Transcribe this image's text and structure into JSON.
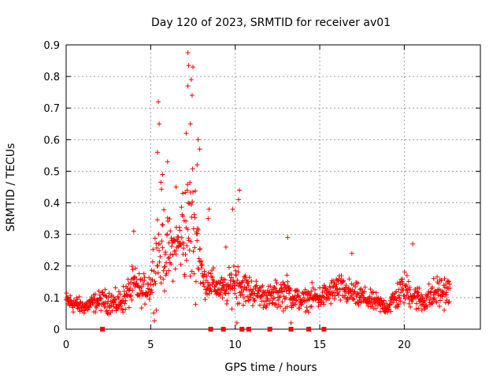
{
  "chart_data": {
    "type": "scatter",
    "title": "Day 120 of 2023, SRMTID for receiver av01",
    "xlabel": "GPS time / hours",
    "ylabel": "SRMTID / TECUs",
    "xlim": [
      0,
      24.5
    ],
    "ylim": [
      0,
      0.9
    ],
    "xticks": [
      0,
      5,
      10,
      15,
      20
    ],
    "yticks": [
      0,
      0.1,
      0.2,
      0.3,
      0.4,
      0.5,
      0.6,
      0.7,
      0.8,
      0.9
    ],
    "ytick_labels": [
      "0",
      "0.1",
      "0.2",
      "0.3",
      "0.4",
      "0.5",
      "0.6",
      "0.7",
      "0.8",
      "0.9"
    ],
    "grid": true,
    "marker": "plus",
    "color": "#ff0000",
    "series": [
      {
        "name": "SRMTID",
        "envelope_x": [
          0,
          0.5,
          1,
          1.5,
          2,
          2.5,
          3,
          3.5,
          4,
          4.5,
          5,
          5.3,
          5.6,
          6,
          6.3,
          6.6,
          6.9,
          7.2,
          7.5,
          7.8,
          8.1,
          8.5,
          9,
          9.5,
          10,
          10.5,
          11,
          11.5,
          12,
          12.5,
          13,
          13.5,
          14,
          14.5,
          15,
          15.5,
          16,
          16.5,
          17,
          17.5,
          18,
          18.5,
          19,
          19.5,
          20,
          20.5,
          21,
          21.5,
          22,
          22.7
        ],
        "envelope_median": [
          0.09,
          0.08,
          0.07,
          0.08,
          0.09,
          0.09,
          0.08,
          0.1,
          0.14,
          0.12,
          0.14,
          0.22,
          0.28,
          0.24,
          0.25,
          0.27,
          0.3,
          0.32,
          0.33,
          0.28,
          0.15,
          0.15,
          0.13,
          0.12,
          0.16,
          0.13,
          0.12,
          0.11,
          0.1,
          0.11,
          0.12,
          0.1,
          0.09,
          0.1,
          0.1,
          0.11,
          0.13,
          0.12,
          0.11,
          0.1,
          0.09,
          0.08,
          0.07,
          0.1,
          0.13,
          0.11,
          0.09,
          0.1,
          0.12,
          0.12
        ],
        "envelope_spread": [
          0.04,
          0.04,
          0.03,
          0.04,
          0.04,
          0.05,
          0.05,
          0.06,
          0.08,
          0.06,
          0.07,
          0.2,
          0.22,
          0.15,
          0.12,
          0.1,
          0.18,
          0.25,
          0.28,
          0.2,
          0.06,
          0.07,
          0.05,
          0.06,
          0.1,
          0.07,
          0.06,
          0.05,
          0.05,
          0.06,
          0.07,
          0.05,
          0.04,
          0.05,
          0.05,
          0.05,
          0.06,
          0.06,
          0.05,
          0.05,
          0.04,
          0.04,
          0.03,
          0.06,
          0.07,
          0.06,
          0.05,
          0.06,
          0.07,
          0.06
        ],
        "highlight_points": [
          {
            "x": 5.45,
            "y": 0.72
          },
          {
            "x": 5.5,
            "y": 0.65
          },
          {
            "x": 5.4,
            "y": 0.56
          },
          {
            "x": 7.2,
            "y": 0.875
          },
          {
            "x": 7.25,
            "y": 0.835
          },
          {
            "x": 7.5,
            "y": 0.83
          },
          {
            "x": 7.4,
            "y": 0.79
          },
          {
            "x": 7.45,
            "y": 0.74
          },
          {
            "x": 7.2,
            "y": 0.77
          },
          {
            "x": 7.35,
            "y": 0.65
          },
          {
            "x": 7.1,
            "y": 0.62
          },
          {
            "x": 7.8,
            "y": 0.6
          },
          {
            "x": 7.9,
            "y": 0.57
          },
          {
            "x": 6.0,
            "y": 0.53
          },
          {
            "x": 5.7,
            "y": 0.49
          },
          {
            "x": 7.75,
            "y": 0.52
          },
          {
            "x": 10.25,
            "y": 0.44
          },
          {
            "x": 10.2,
            "y": 0.41
          },
          {
            "x": 9.85,
            "y": 0.38
          },
          {
            "x": 8.45,
            "y": 0.38
          },
          {
            "x": 8.4,
            "y": 0.35
          },
          {
            "x": 4.0,
            "y": 0.31
          },
          {
            "x": 6.5,
            "y": 0.45
          },
          {
            "x": 6.9,
            "y": 0.43
          },
          {
            "x": 13.1,
            "y": 0.29
          },
          {
            "x": 20.5,
            "y": 0.27
          },
          {
            "x": 16.9,
            "y": 0.24
          },
          {
            "x": 10.1,
            "y": 0.02
          },
          {
            "x": 13.3,
            "y": 0.02
          },
          {
            "x": 9.45,
            "y": 0.26
          }
        ]
      }
    ],
    "gap_markers_x": [
      2.15,
      8.55,
      9.3,
      10.4,
      10.8,
      12.05,
      13.3,
      14.35,
      15.25
    ]
  }
}
